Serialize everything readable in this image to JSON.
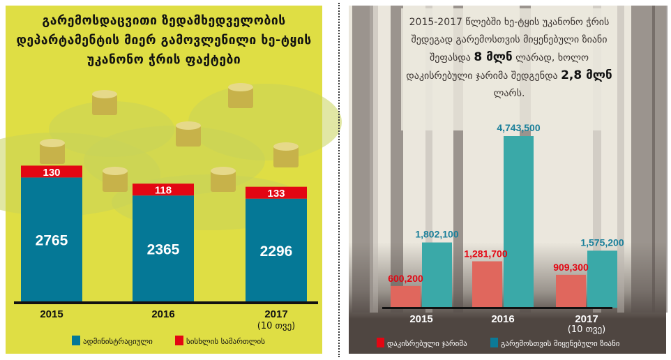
{
  "left_title": "გარემოსდაცვითი ზედამხედველობის დეპარტამენტის მიერ გამოვლენილი ხე-ტყის უკანონო ჭრის ფაქტები",
  "right_text": {
    "part1": "2015-2017 წლებში ხე-ტყის უკანონო ჭრის შედეგად გარემოსთვის მიყენებული ზიანი შეფასდა",
    "bold1": "8 მლნ",
    "part2": "ლარად, ხოლო დაკისრებული ჯარიმა შედგენდა",
    "bold2": "2,8 მლნ",
    "part3": "ლარს."
  },
  "colors": {
    "blue": "#057896",
    "red": "#e30613",
    "yellow": "#dfde44",
    "teal": "#3aa9a8",
    "salmon": "#e0675d",
    "dark": "#4f4641",
    "beige": "#ebe7dd"
  },
  "chart_data": [
    {
      "type": "bar",
      "stacked": true,
      "categories": [
        "2015",
        "2016",
        "2017"
      ],
      "category_notes": [
        "",
        "",
        "(10 თვე)"
      ],
      "series": [
        {
          "name": "ადმინისტრაციული",
          "values": [
            2765,
            2365,
            2296
          ]
        },
        {
          "name": "სისხლის სამართლის",
          "values": [
            130,
            118,
            133
          ]
        }
      ],
      "legend_position": "bottom"
    },
    {
      "type": "bar",
      "categories": [
        "2015",
        "2016",
        "2017"
      ],
      "category_notes": [
        "",
        "",
        "(10 თვე)"
      ],
      "series": [
        {
          "name": "დაკისრებული ჯარიმა",
          "values": [
            600200,
            1281700,
            909300
          ],
          "labels": [
            "600,200",
            "1,281,700",
            "909,300"
          ]
        },
        {
          "name": "გარემოსთვის მიყენებული ზიანი",
          "values": [
            1802100,
            4743500,
            1575200
          ],
          "labels": [
            "1,802,100",
            "4,743,500",
            "1,575,200"
          ]
        }
      ],
      "legend_position": "bottom"
    }
  ]
}
